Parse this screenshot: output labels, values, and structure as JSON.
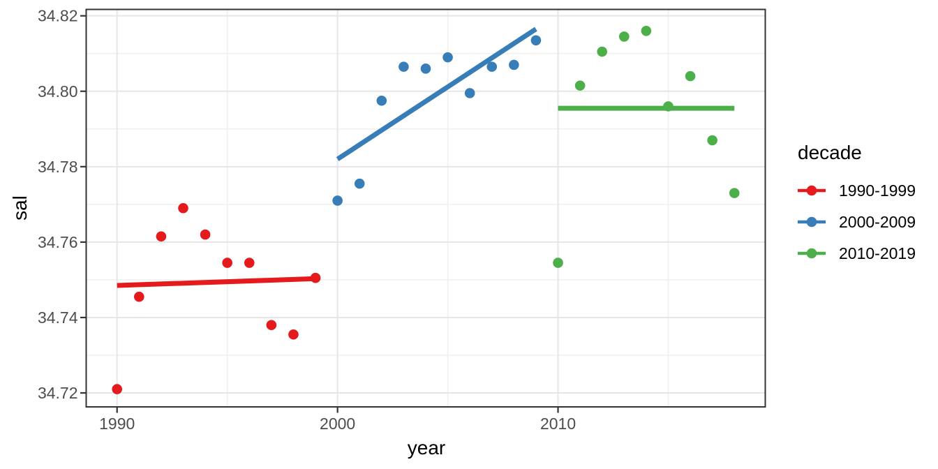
{
  "chart_data": {
    "type": "scatter",
    "title": "",
    "xlabel": "year",
    "ylabel": "sal",
    "legend_title": "decade",
    "legend_position": "right",
    "grid": true,
    "xlim": [
      1988.6,
      2019.4
    ],
    "ylim": [
      34.7163,
      34.8217
    ],
    "x_ticks": {
      "values": [
        1990,
        2000,
        2010
      ],
      "labels": [
        "1990",
        "2000",
        "2010"
      ],
      "minor": [
        1995,
        2005,
        2015
      ]
    },
    "y_ticks": {
      "values": [
        34.72,
        34.74,
        34.76,
        34.78,
        34.8,
        34.82
      ],
      "labels": [
        "34.72",
        "34.74",
        "34.76",
        "34.78",
        "34.80",
        "34.82"
      ],
      "minor": [
        34.73,
        34.75,
        34.77,
        34.79,
        34.81
      ]
    },
    "series": [
      {
        "name": "1990-1999",
        "color": "#E41A1C",
        "x": [
          1990,
          1991,
          1992,
          1993,
          1994,
          1995,
          1996,
          1997,
          1998,
          1999
        ],
        "y": [
          34.721,
          34.7455,
          34.7615,
          34.769,
          34.762,
          34.7545,
          34.7545,
          34.738,
          34.7355,
          34.7505
        ],
        "trend": {
          "x": [
            1990,
            1999
          ],
          "y": [
            34.7485,
            34.7503
          ]
        }
      },
      {
        "name": "2000-2009",
        "color": "#377EB8",
        "x": [
          2000,
          2001,
          2002,
          2003,
          2004,
          2005,
          2006,
          2007,
          2008,
          2009
        ],
        "y": [
          34.771,
          34.7755,
          34.7975,
          34.8065,
          34.806,
          34.809,
          34.7995,
          34.8065,
          34.807,
          34.8135
        ],
        "trend": {
          "x": [
            2000,
            2009
          ],
          "y": [
            34.782,
            34.8165
          ]
        }
      },
      {
        "name": "2010-2019",
        "color": "#4DAF4A",
        "x": [
          2010,
          2011,
          2012,
          2013,
          2014,
          2015,
          2016,
          2017,
          2018
        ],
        "y": [
          34.7545,
          34.8015,
          34.8105,
          34.8145,
          34.816,
          34.796,
          34.804,
          34.787,
          34.773
        ],
        "trend": {
          "x": [
            2010,
            2018
          ],
          "y": [
            34.7955,
            34.7955
          ]
        }
      }
    ],
    "style": {
      "grid_major_color": "#e6e6e6",
      "grid_minor_color": "#f0f0f0",
      "panel_border_color": "#333333",
      "tick_color": "#333333",
      "tick_label_color": "#4d4d4d",
      "axis_title_color": "#000000",
      "background": "#ffffff",
      "point_radius": 7.3,
      "trend_width": 7
    }
  }
}
